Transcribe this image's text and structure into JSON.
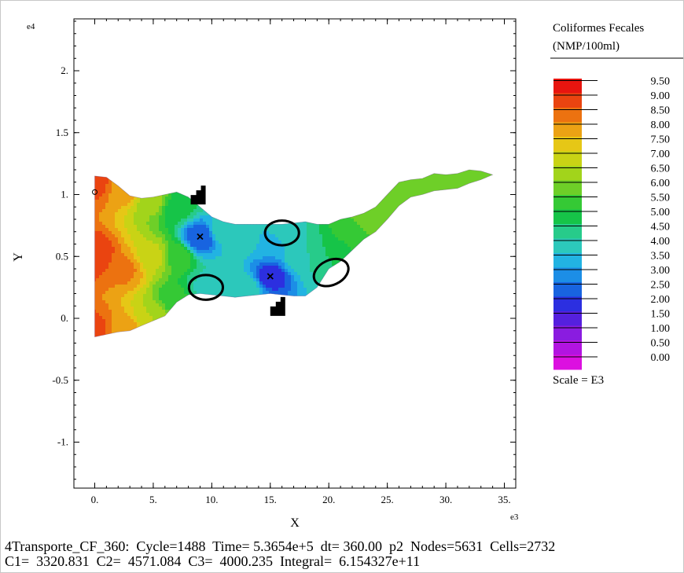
{
  "chart_data": {
    "type": "contour",
    "x_multiplier_label": "e3",
    "y_multiplier_label": "e4",
    "xlabel": "X",
    "ylabel": "Y",
    "xlim": [
      -1.7,
      35.5
    ],
    "ylim": [
      -1.35,
      2.45
    ],
    "x_ticks": [
      {
        "v": 0,
        "label": "0."
      },
      {
        "v": 5,
        "label": "5."
      },
      {
        "v": 10,
        "label": "10."
      },
      {
        "v": 15,
        "label": "15."
      },
      {
        "v": 20,
        "label": "20."
      },
      {
        "v": 25,
        "label": "25."
      },
      {
        "v": 30,
        "label": "30."
      },
      {
        "v": 35,
        "label": "35."
      }
    ],
    "y_ticks": [
      {
        "v": 2,
        "label": "2."
      },
      {
        "v": 1.5,
        "label": "1.5"
      },
      {
        "v": 1,
        "label": "1."
      },
      {
        "v": 0.5,
        "label": "0.5"
      },
      {
        "v": 0,
        "label": "0."
      },
      {
        "v": -0.5,
        "label": "-0.5"
      },
      {
        "v": -1,
        "label": "-1."
      }
    ],
    "boundary_top": [
      [
        0,
        1.15
      ],
      [
        1,
        1.14
      ],
      [
        2,
        1.07
      ],
      [
        3,
        0.99
      ],
      [
        4,
        0.97
      ],
      [
        5,
        0.98
      ],
      [
        6,
        1.0
      ],
      [
        7,
        1.02
      ],
      [
        8,
        0.98
      ],
      [
        9,
        0.9
      ],
      [
        10,
        0.82
      ],
      [
        11,
        0.78
      ],
      [
        12,
        0.76
      ],
      [
        13,
        0.76
      ],
      [
        14,
        0.76
      ],
      [
        15,
        0.76
      ],
      [
        16,
        0.76
      ],
      [
        17,
        0.77
      ],
      [
        18,
        0.78
      ],
      [
        19,
        0.76
      ],
      [
        20,
        0.76
      ],
      [
        21,
        0.8
      ],
      [
        22,
        0.82
      ],
      [
        23,
        0.85
      ],
      [
        24,
        0.9
      ],
      [
        25,
        1.0
      ],
      [
        26,
        1.1
      ],
      [
        27,
        1.12
      ],
      [
        28,
        1.13
      ],
      [
        29,
        1.17
      ],
      [
        30,
        1.16
      ],
      [
        31,
        1.17
      ],
      [
        32,
        1.2
      ],
      [
        33,
        1.19
      ],
      [
        34,
        1.16
      ]
    ],
    "boundary_bottom": [
      [
        34,
        1.16
      ],
      [
        33,
        1.12
      ],
      [
        32,
        1.09
      ],
      [
        31,
        1.05
      ],
      [
        30,
        1.04
      ],
      [
        29,
        1.03
      ],
      [
        28,
        1.0
      ],
      [
        27,
        0.98
      ],
      [
        26,
        0.91
      ],
      [
        25,
        0.8
      ],
      [
        24,
        0.7
      ],
      [
        23,
        0.64
      ],
      [
        22,
        0.55
      ],
      [
        21,
        0.46
      ],
      [
        20,
        0.4
      ],
      [
        19,
        0.25
      ],
      [
        18,
        0.18
      ],
      [
        17,
        0.18
      ],
      [
        16,
        0.19
      ],
      [
        15,
        0.2
      ],
      [
        14,
        0.19
      ],
      [
        13,
        0.18
      ],
      [
        12,
        0.17
      ],
      [
        11,
        0.18
      ],
      [
        10,
        0.19
      ],
      [
        9,
        0.2
      ],
      [
        8,
        0.19
      ],
      [
        7,
        0.13
      ],
      [
        6,
        0.02
      ],
      [
        5,
        -0.02
      ],
      [
        4,
        -0.06
      ],
      [
        3,
        -0.1
      ],
      [
        2,
        -0.11
      ],
      [
        1,
        -0.13
      ],
      [
        0,
        -0.15
      ]
    ],
    "field_points": [
      [
        0,
        1.1,
        9.2
      ],
      [
        0,
        0.5,
        9.5
      ],
      [
        0,
        -0.1,
        9.2
      ],
      [
        2.5,
        1.05,
        8.3
      ],
      [
        2.5,
        0.4,
        8.6
      ],
      [
        2.5,
        -0.1,
        8.3
      ],
      [
        5,
        0.95,
        6.7
      ],
      [
        5,
        0.5,
        7.2
      ],
      [
        5,
        0.0,
        7.0
      ],
      [
        7,
        0.9,
        5.2
      ],
      [
        7,
        0.5,
        5.8
      ],
      [
        7,
        0.15,
        5.6
      ],
      [
        9,
        0.65,
        2.5
      ],
      [
        9.5,
        0.25,
        4.4
      ],
      [
        11,
        0.7,
        4.3
      ],
      [
        11,
        0.3,
        4.4
      ],
      [
        13,
        0.65,
        4.4
      ],
      [
        13,
        0.25,
        4.3
      ],
      [
        15,
        0.34,
        2.2
      ],
      [
        15,
        0.6,
        3.6
      ],
      [
        16,
        0.7,
        4.3
      ],
      [
        17.5,
        0.5,
        4.4
      ],
      [
        19,
        0.5,
        4.6
      ],
      [
        20.5,
        0.55,
        5.3
      ],
      [
        22,
        0.7,
        5.9
      ],
      [
        23.5,
        0.8,
        6.2
      ],
      [
        25.5,
        0.95,
        6.5
      ],
      [
        27,
        1.05,
        6.4
      ],
      [
        29,
        1.1,
        6.0
      ],
      [
        31,
        1.12,
        6.2
      ],
      [
        33,
        1.15,
        6.3
      ]
    ],
    "markers": [
      {
        "type": "x",
        "x": 9.0,
        "y": 0.66
      },
      {
        "type": "x",
        "x": 15.0,
        "y": 0.34
      },
      {
        "type": "circle-small",
        "x": 0.0,
        "y": 1.02
      }
    ],
    "ellipses": [
      {
        "cx": 9.5,
        "cy": 0.25,
        "rx": 1.45,
        "ry": 0.1
      },
      {
        "cx": 16.0,
        "cy": 0.69,
        "rx": 1.45,
        "ry": 0.1
      },
      {
        "cx": 20.2,
        "cy": 0.37,
        "rx": 1.55,
        "ry": 0.1,
        "angle_deg": -25
      }
    ],
    "structures": [
      {
        "x": 8.2,
        "y": 0.92
      },
      {
        "x": 15.0,
        "y": 0.02
      }
    ],
    "legend": {
      "title_line1": "Coliformes Fecales",
      "title_line2": "(NMP/100ml)",
      "scale_text": "Scale = E3",
      "levels": [
        "9.50",
        "9.00",
        "8.50",
        "8.00",
        "7.50",
        "7.00",
        "6.50",
        "6.00",
        "5.50",
        "5.00",
        "4.50",
        "4.00",
        "3.50",
        "3.00",
        "2.50",
        "2.00",
        "1.50",
        "1.00",
        "0.50",
        "0.00"
      ],
      "colors": [
        "#e8150f",
        "#ea4410",
        "#ec7210",
        "#eca214",
        "#e6c716",
        "#c9d315",
        "#a2d41b",
        "#6ecf28",
        "#35c935",
        "#16c448",
        "#27cb8a",
        "#2cc8bb",
        "#22b3e2",
        "#1c8ee6",
        "#1864e0",
        "#2c2fe0",
        "#5520de",
        "#8a1ce0",
        "#b214e0",
        "#dc10e0"
      ]
    }
  },
  "footer": {
    "line1": "4Transporte_CF_360:  Cycle=1488  Time= 5.3654e+5  dt= 360.00  p2  Nodes=5631  Cells=2732",
    "line2": "C1=  3320.831  C2=  4571.084  C3=  4000.235  Integral=  6.154327e+11"
  }
}
